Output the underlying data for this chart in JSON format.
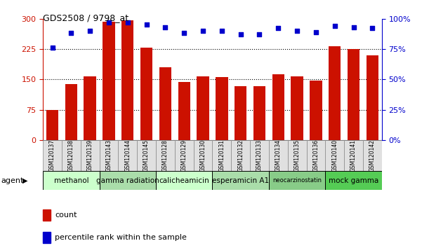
{
  "title": "GDS2508 / 9798_at",
  "samples": [
    "GSM120137",
    "GSM120138",
    "GSM120139",
    "GSM120143",
    "GSM120144",
    "GSM120145",
    "GSM120128",
    "GSM120129",
    "GSM120130",
    "GSM120131",
    "GSM120132",
    "GSM120133",
    "GSM120134",
    "GSM120135",
    "GSM120136",
    "GSM120140",
    "GSM120141",
    "GSM120142"
  ],
  "counts": [
    75,
    138,
    157,
    293,
    295,
    228,
    180,
    143,
    157,
    155,
    133,
    133,
    163,
    158,
    147,
    232,
    225,
    210
  ],
  "percentiles": [
    76,
    88,
    90,
    97,
    97,
    95,
    93,
    88,
    90,
    90,
    87,
    87,
    92,
    90,
    89,
    94,
    93,
    92
  ],
  "agent_groups": [
    {
      "label": "methanol",
      "start": 0,
      "end": 3,
      "color": "#ccffcc"
    },
    {
      "label": "gamma radiation",
      "start": 3,
      "end": 6,
      "color": "#aaddaa"
    },
    {
      "label": "calicheamicin",
      "start": 6,
      "end": 9,
      "color": "#ccffcc"
    },
    {
      "label": "esperamicin A1",
      "start": 9,
      "end": 12,
      "color": "#aaddaa"
    },
    {
      "label": "neocarzinostatin",
      "start": 12,
      "end": 15,
      "color": "#88cc88"
    },
    {
      "label": "mock gamma",
      "start": 15,
      "end": 18,
      "color": "#55cc55"
    }
  ],
  "bar_color": "#cc1100",
  "dot_color": "#0000cc",
  "left_ylim": [
    0,
    300
  ],
  "right_ylim": [
    0,
    100
  ],
  "left_yticks": [
    0,
    75,
    150,
    225,
    300
  ],
  "right_yticks": [
    0,
    25,
    50,
    75,
    100
  ],
  "right_yticklabels": [
    "0%",
    "25%",
    "50%",
    "75%",
    "100%"
  ],
  "hlines": [
    75,
    150,
    225
  ],
  "legend_count_label": "count",
  "legend_pct_label": "percentile rank within the sample",
  "agent_label": "agent"
}
